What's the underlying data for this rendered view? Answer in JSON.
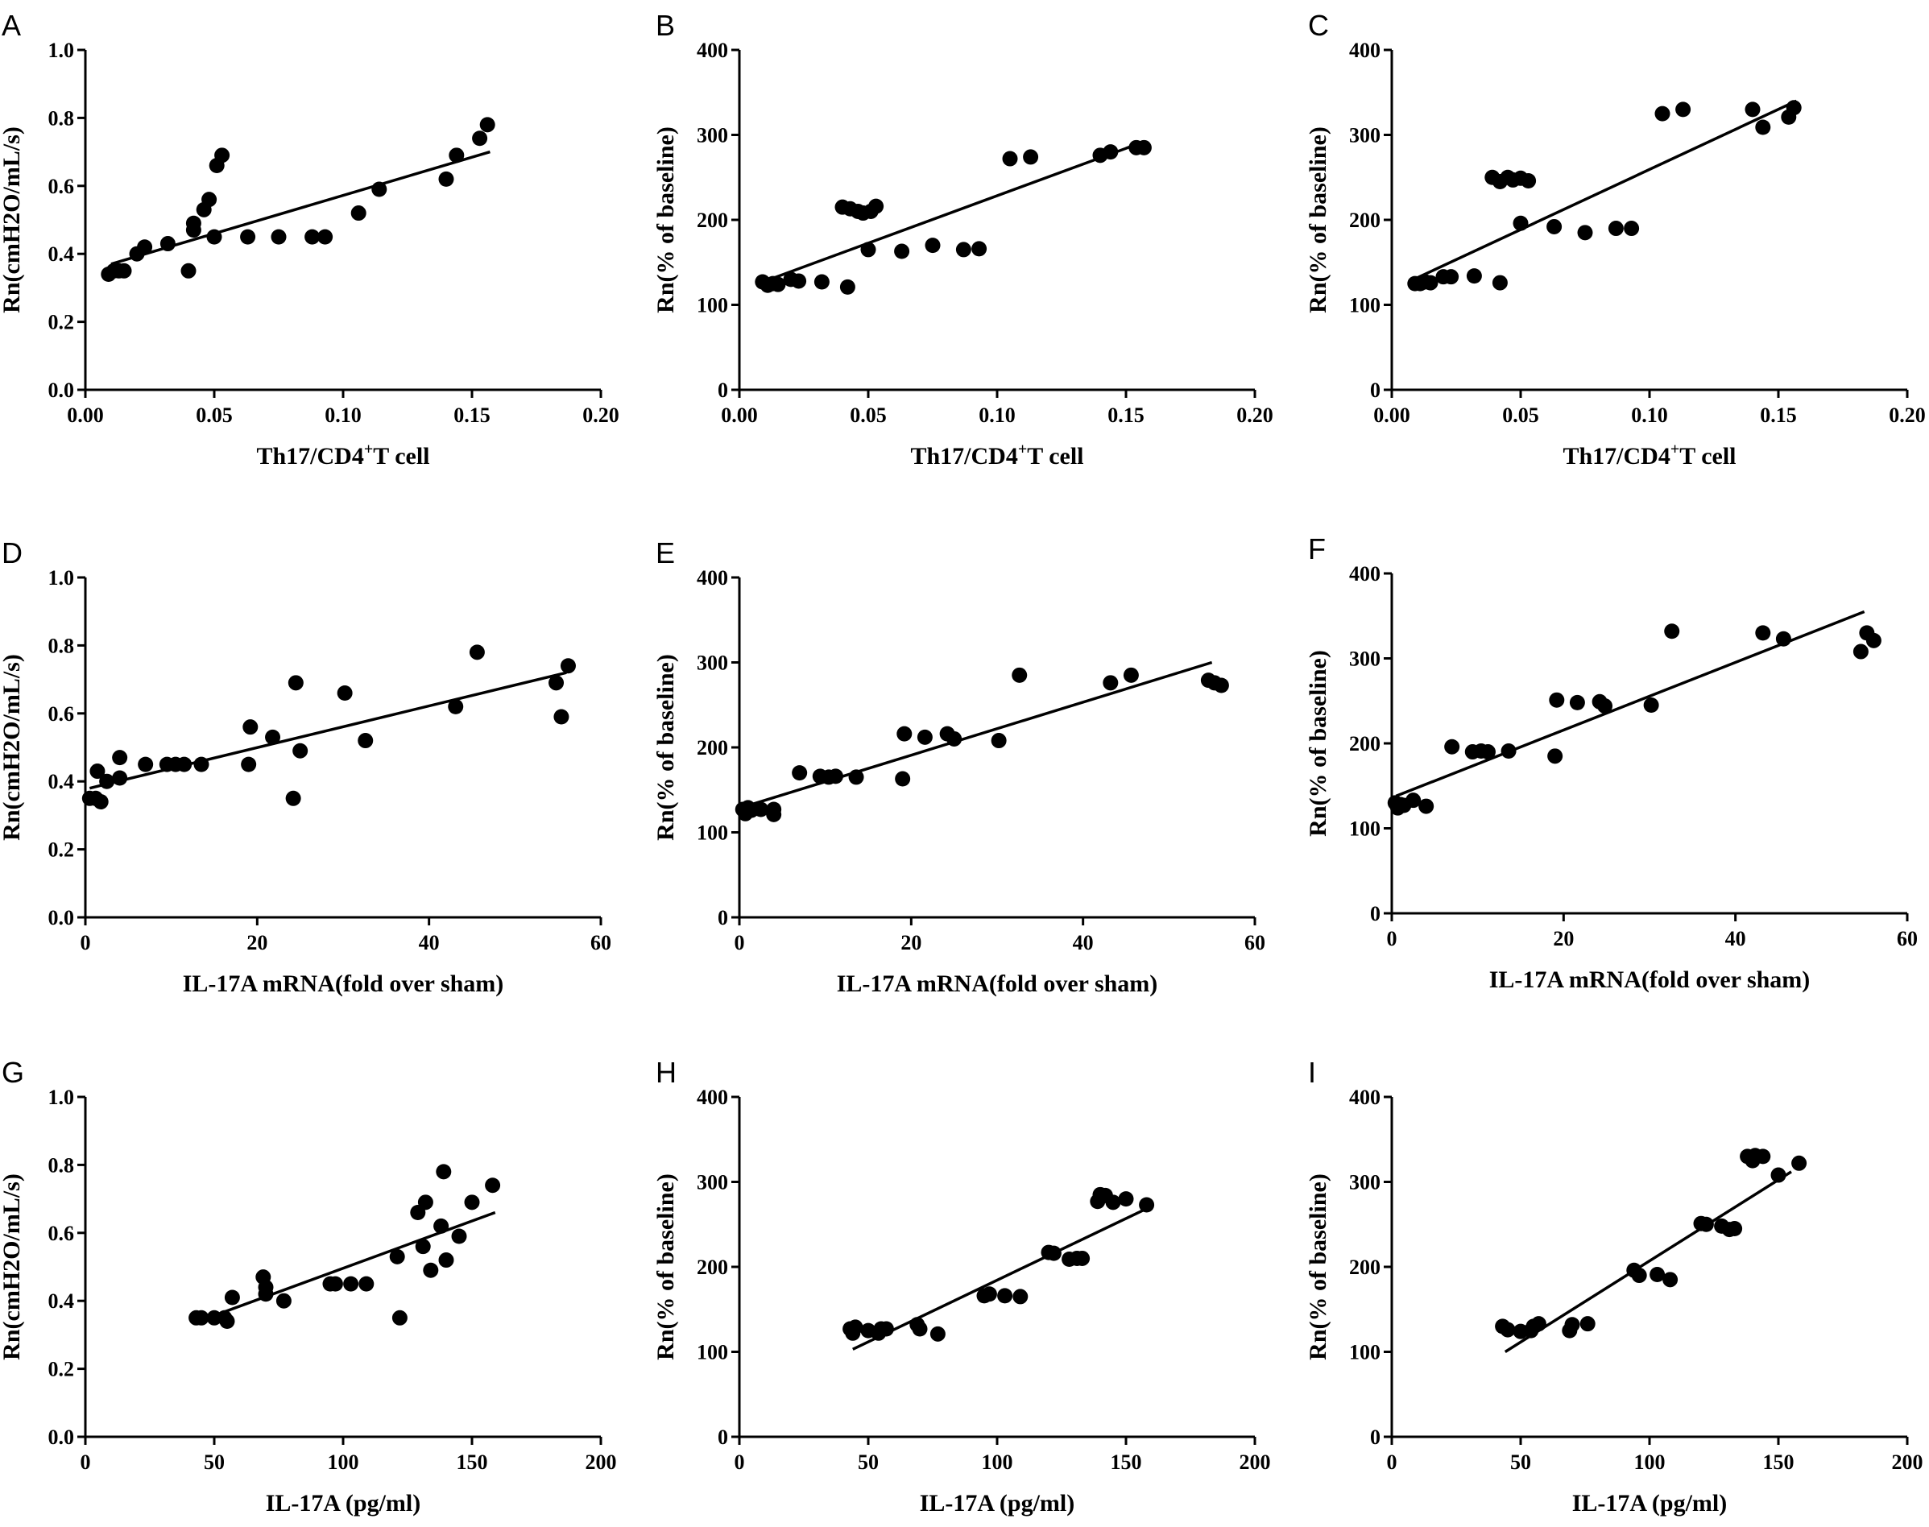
{
  "chart_data": [
    {
      "panel": "A",
      "type": "scatter",
      "xlabel": "Th17/CD4+T cell",
      "xlabel_parts": [
        "Th17/CD4",
        "+",
        "T cell"
      ],
      "ylabel": "Rn(cmH2O/mL/s)",
      "xlim": [
        0,
        0.2
      ],
      "ylim": [
        0,
        1.0
      ],
      "xticks": [
        "0.00",
        "0.05",
        "0.10",
        "0.15",
        "0.20"
      ],
      "yticks": [
        "0.0",
        "0.2",
        "0.4",
        "0.6",
        "0.8",
        "1.0"
      ],
      "fit": {
        "x": [
          0.01,
          0.157
        ],
        "y": [
          0.37,
          0.7
        ]
      },
      "points": [
        [
          0.009,
          0.34
        ],
        [
          0.011,
          0.35
        ],
        [
          0.013,
          0.35
        ],
        [
          0.015,
          0.35
        ],
        [
          0.02,
          0.4
        ],
        [
          0.023,
          0.42
        ],
        [
          0.032,
          0.43
        ],
        [
          0.04,
          0.35
        ],
        [
          0.042,
          0.47
        ],
        [
          0.042,
          0.49
        ],
        [
          0.046,
          0.53
        ],
        [
          0.048,
          0.56
        ],
        [
          0.05,
          0.45
        ],
        [
          0.051,
          0.66
        ],
        [
          0.053,
          0.69
        ],
        [
          0.063,
          0.45
        ],
        [
          0.075,
          0.45
        ],
        [
          0.088,
          0.45
        ],
        [
          0.093,
          0.45
        ],
        [
          0.106,
          0.52
        ],
        [
          0.114,
          0.59
        ],
        [
          0.14,
          0.62
        ],
        [
          0.144,
          0.69
        ],
        [
          0.153,
          0.74
        ],
        [
          0.156,
          0.78
        ]
      ]
    },
    {
      "panel": "B",
      "type": "scatter",
      "xlabel": "Th17/CD4+T cell",
      "xlabel_parts": [
        "Th17/CD4",
        "+",
        "T cell"
      ],
      "ylabel": "Rn(% of baseline)",
      "xlim": [
        0,
        0.2
      ],
      "ylim": [
        0,
        400
      ],
      "xticks": [
        "0.00",
        "0.05",
        "0.10",
        "0.15",
        "0.20"
      ],
      "yticks": [
        "0",
        "100",
        "200",
        "300",
        "400"
      ],
      "fit": {
        "x": [
          0.01,
          0.157
        ],
        "y": [
          128,
          292
        ]
      },
      "points": [
        [
          0.009,
          127
        ],
        [
          0.011,
          123
        ],
        [
          0.013,
          125
        ],
        [
          0.015,
          124
        ],
        [
          0.02,
          130
        ],
        [
          0.023,
          128
        ],
        [
          0.032,
          127
        ],
        [
          0.04,
          215
        ],
        [
          0.042,
          121
        ],
        [
          0.043,
          213
        ],
        [
          0.046,
          210
        ],
        [
          0.048,
          208
        ],
        [
          0.05,
          165
        ],
        [
          0.051,
          210
        ],
        [
          0.053,
          216
        ],
        [
          0.063,
          163
        ],
        [
          0.075,
          170
        ],
        [
          0.087,
          165
        ],
        [
          0.093,
          166
        ],
        [
          0.105,
          272
        ],
        [
          0.113,
          274
        ],
        [
          0.14,
          276
        ],
        [
          0.144,
          280
        ],
        [
          0.154,
          285
        ],
        [
          0.157,
          285
        ]
      ]
    },
    {
      "panel": "C",
      "type": "scatter",
      "xlabel": "Th17/CD4+T cell",
      "xlabel_parts": [
        "Th17/CD4",
        "+",
        "T cell"
      ],
      "ylabel": "Rn(% of baseline)",
      "xlim": [
        0,
        0.2
      ],
      "ylim": [
        0,
        400
      ],
      "xticks": [
        "0.00",
        "0.05",
        "0.10",
        "0.15",
        "0.20"
      ],
      "yticks": [
        "0",
        "100",
        "200",
        "300",
        "400"
      ],
      "fit": {
        "x": [
          0.01,
          0.157
        ],
        "y": [
          132,
          340
        ]
      },
      "points": [
        [
          0.009,
          125
        ],
        [
          0.011,
          125
        ],
        [
          0.013,
          127
        ],
        [
          0.015,
          126
        ],
        [
          0.02,
          133
        ],
        [
          0.023,
          133
        ],
        [
          0.032,
          134
        ],
        [
          0.039,
          250
        ],
        [
          0.042,
          126
        ],
        [
          0.042,
          245
        ],
        [
          0.045,
          250
        ],
        [
          0.047,
          247
        ],
        [
          0.05,
          196
        ],
        [
          0.05,
          249
        ],
        [
          0.053,
          246
        ],
        [
          0.063,
          192
        ],
        [
          0.075,
          185
        ],
        [
          0.087,
          190
        ],
        [
          0.093,
          190
        ],
        [
          0.105,
          325
        ],
        [
          0.113,
          330
        ],
        [
          0.14,
          330
        ],
        [
          0.144,
          309
        ],
        [
          0.154,
          321
        ],
        [
          0.156,
          332
        ]
      ]
    },
    {
      "panel": "D",
      "type": "scatter",
      "xlabel": "IL-17A mRNA(fold over sham)",
      "ylabel": "Rn(cmH2O/mL/s)",
      "xlim": [
        0,
        60
      ],
      "ylim": [
        0,
        1.0
      ],
      "xticks": [
        "0",
        "20",
        "40",
        "60"
      ],
      "yticks": [
        "0.0",
        "0.2",
        "0.4",
        "0.6",
        "0.8",
        "1.0"
      ],
      "fit": {
        "x": [
          0.5,
          56
        ],
        "y": [
          0.38,
          0.72
        ]
      },
      "points": [
        [
          0.5,
          0.35
        ],
        [
          1.2,
          0.35
        ],
        [
          1.4,
          0.43
        ],
        [
          1.8,
          0.34
        ],
        [
          2.5,
          0.4
        ],
        [
          4.0,
          0.41
        ],
        [
          4.0,
          0.47
        ],
        [
          7,
          0.45
        ],
        [
          9.5,
          0.45
        ],
        [
          10.5,
          0.45
        ],
        [
          11.5,
          0.45
        ],
        [
          13.5,
          0.45
        ],
        [
          19,
          0.45
        ],
        [
          19.2,
          0.56
        ],
        [
          21.8,
          0.53
        ],
        [
          24.2,
          0.35
        ],
        [
          24.5,
          0.69
        ],
        [
          25,
          0.49
        ],
        [
          30.2,
          0.66
        ],
        [
          32.6,
          0.52
        ],
        [
          43.1,
          0.62
        ],
        [
          45.6,
          0.78
        ],
        [
          54.8,
          0.69
        ],
        [
          55.4,
          0.59
        ],
        [
          56.2,
          0.74
        ]
      ]
    },
    {
      "panel": "E",
      "type": "scatter",
      "xlabel": "IL-17A mRNA(fold over sham)",
      "ylabel": "Rn(% of baseline)",
      "xlim": [
        0,
        60
      ],
      "ylim": [
        0,
        400
      ],
      "xticks": [
        "0",
        "20",
        "40",
        "60"
      ],
      "yticks": [
        "0",
        "100",
        "200",
        "300",
        "400"
      ],
      "fit": {
        "x": [
          0.5,
          55
        ],
        "y": [
          130,
          300
        ]
      },
      "points": [
        [
          0.4,
          127
        ],
        [
          0.7,
          122
        ],
        [
          1.0,
          129
        ],
        [
          1.4,
          126
        ],
        [
          2.5,
          127
        ],
        [
          4.0,
          127
        ],
        [
          4.0,
          121
        ],
        [
          7,
          170
        ],
        [
          9.4,
          166
        ],
        [
          10.4,
          165
        ],
        [
          11.2,
          166
        ],
        [
          13.6,
          165
        ],
        [
          19,
          163
        ],
        [
          19.2,
          216
        ],
        [
          21.6,
          212
        ],
        [
          24.2,
          216
        ],
        [
          25,
          210
        ],
        [
          30.2,
          208
        ],
        [
          32.6,
          285
        ],
        [
          43.2,
          276
        ],
        [
          45.6,
          285
        ],
        [
          54.6,
          279
        ],
        [
          55.3,
          276
        ],
        [
          56.1,
          273
        ]
      ]
    },
    {
      "panel": "F",
      "type": "scatter",
      "xlabel": "IL-17A mRNA(fold over sham)",
      "ylabel": "Rn(% of baseline)",
      "xlim": [
        0,
        60
      ],
      "ylim": [
        0,
        400
      ],
      "xticks": [
        "0",
        "20",
        "40",
        "60"
      ],
      "yticks": [
        "0",
        "100",
        "200",
        "300",
        "400"
      ],
      "fit": {
        "x": [
          0.5,
          55
        ],
        "y": [
          138,
          355
        ]
      },
      "points": [
        [
          0.4,
          130
        ],
        [
          0.7,
          124
        ],
        [
          1.0,
          128
        ],
        [
          1.4,
          127
        ],
        [
          2.5,
          133
        ],
        [
          4.0,
          126
        ],
        [
          7,
          196
        ],
        [
          9.4,
          190
        ],
        [
          10.4,
          191
        ],
        [
          11.2,
          190
        ],
        [
          13.6,
          191
        ],
        [
          19,
          185
        ],
        [
          19.2,
          251
        ],
        [
          21.6,
          248
        ],
        [
          24.2,
          249
        ],
        [
          24.8,
          244
        ],
        [
          30.2,
          245
        ],
        [
          32.6,
          332
        ],
        [
          43.2,
          330
        ],
        [
          45.6,
          323
        ],
        [
          54.6,
          308
        ],
        [
          55.3,
          330
        ],
        [
          56.1,
          321
        ]
      ]
    },
    {
      "panel": "G",
      "type": "scatter",
      "xlabel": "IL-17A (pg/ml)",
      "ylabel": "Rn(cmH2O/mL/s)",
      "xlim": [
        0,
        200
      ],
      "ylim": [
        0,
        1.0
      ],
      "xticks": [
        "0",
        "50",
        "100",
        "150",
        "200"
      ],
      "yticks": [
        "0.0",
        "0.2",
        "0.4",
        "0.6",
        "0.8",
        "1.0"
      ],
      "fit": {
        "x": [
          44,
          159
        ],
        "y": [
          0.34,
          0.66
        ]
      },
      "points": [
        [
          43,
          0.35
        ],
        [
          45,
          0.35
        ],
        [
          50,
          0.35
        ],
        [
          54,
          0.35
        ],
        [
          55,
          0.34
        ],
        [
          57,
          0.41
        ],
        [
          69,
          0.47
        ],
        [
          70,
          0.42
        ],
        [
          70,
          0.44
        ],
        [
          77,
          0.4
        ],
        [
          95,
          0.45
        ],
        [
          97,
          0.45
        ],
        [
          103,
          0.45
        ],
        [
          109,
          0.45
        ],
        [
          121,
          0.53
        ],
        [
          122,
          0.35
        ],
        [
          129,
          0.66
        ],
        [
          131,
          0.56
        ],
        [
          132,
          0.69
        ],
        [
          134,
          0.49
        ],
        [
          138,
          0.62
        ],
        [
          139,
          0.78
        ],
        [
          140,
          0.52
        ],
        [
          145,
          0.59
        ],
        [
          150,
          0.69
        ],
        [
          158,
          0.74
        ]
      ]
    },
    {
      "panel": "H",
      "type": "scatter",
      "xlabel": "IL-17A (pg/ml)",
      "ylabel": "Rn(% of baseline)",
      "xlim": [
        0,
        200
      ],
      "ylim": [
        0,
        400
      ],
      "xticks": [
        "0",
        "50",
        "100",
        "150",
        "200"
      ],
      "yticks": [
        "0",
        "100",
        "200",
        "300",
        "400"
      ],
      "fit": {
        "x": [
          44,
          159
        ],
        "y": [
          103,
          270
        ]
      },
      "points": [
        [
          43,
          127
        ],
        [
          44,
          122
        ],
        [
          45,
          129
        ],
        [
          50,
          125
        ],
        [
          54,
          122
        ],
        [
          55,
          127
        ],
        [
          57,
          127
        ],
        [
          69,
          132
        ],
        [
          70,
          127
        ],
        [
          77,
          121
        ],
        [
          95,
          166
        ],
        [
          97,
          168
        ],
        [
          103,
          166
        ],
        [
          109,
          165
        ],
        [
          120,
          217
        ],
        [
          122,
          216
        ],
        [
          128,
          209
        ],
        [
          131,
          210
        ],
        [
          133,
          210
        ],
        [
          139,
          277
        ],
        [
          140,
          285
        ],
        [
          142,
          284
        ],
        [
          145,
          276
        ],
        [
          150,
          280
        ],
        [
          158,
          273
        ]
      ]
    },
    {
      "panel": "I",
      "type": "scatter",
      "xlabel": "IL-17A (pg/ml)",
      "ylabel": "Rn(% of baseline)",
      "xlim": [
        0,
        200
      ],
      "ylim": [
        0,
        400
      ],
      "xticks": [
        "0",
        "50",
        "100",
        "150",
        "200"
      ],
      "yticks": [
        "0",
        "100",
        "200",
        "300",
        "400"
      ],
      "fit": {
        "x": [
          44,
          155
        ],
        "y": [
          100,
          312
        ]
      },
      "points": [
        [
          43,
          130
        ],
        [
          45,
          126
        ],
        [
          50,
          124
        ],
        [
          54,
          125
        ],
        [
          55,
          130
        ],
        [
          57,
          133
        ],
        [
          69,
          125
        ],
        [
          70,
          132
        ],
        [
          76,
          133
        ],
        [
          94,
          196
        ],
        [
          96,
          190
        ],
        [
          103,
          191
        ],
        [
          108,
          185
        ],
        [
          120,
          251
        ],
        [
          122,
          250
        ],
        [
          128,
          248
        ],
        [
          131,
          244
        ],
        [
          133,
          245
        ],
        [
          138,
          330
        ],
        [
          140,
          325
        ],
        [
          141,
          331
        ],
        [
          144,
          330
        ],
        [
          150,
          308
        ],
        [
          158,
          322
        ]
      ]
    }
  ]
}
